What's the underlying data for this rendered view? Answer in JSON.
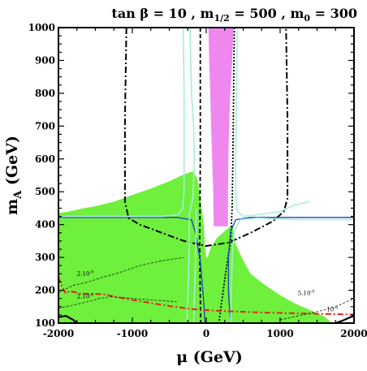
{
  "chart_data": {
    "type": "line",
    "title": "tan β = 10 ,  m1/2 = 500 ,  m0 = 300",
    "title_parts": {
      "t1": "tan β = 10 ,  m",
      "s1": "1/2",
      "t2": " = 500 ,  m",
      "s2": "0",
      "t3": " = 300"
    },
    "xlabel": "μ (GeV)",
    "ylabel_main": "m",
    "ylabel_sub": "A",
    "ylabel_rest": " (GeV)",
    "xlim": [
      -2000,
      2000
    ],
    "ylim": [
      100,
      1000
    ],
    "xticks": [
      -2000,
      -1000,
      0,
      1000,
      2000
    ],
    "xtick_labels": [
      "-2000",
      "-1000",
      "0",
      "1000",
      "2000"
    ],
    "yticks": [
      100,
      200,
      300,
      400,
      500,
      600,
      700,
      800,
      900,
      1000
    ],
    "ytick_labels": [
      "100",
      "200",
      "300",
      "400",
      "500",
      "600",
      "700",
      "800",
      "900",
      "1000"
    ],
    "colors": {
      "green_region": "#6ef03c",
      "pink_band": "#ee88ee",
      "blue_contour": "#1f3fbf",
      "lightblue_contour": "#a8eed8",
      "red_contour": "#e8201a",
      "black": "#000000"
    },
    "regions": {
      "green": [
        [
          -2000,
          100
        ],
        [
          -2000,
          435
        ],
        [
          -1850,
          440
        ],
        [
          -1700,
          448
        ],
        [
          -1500,
          456
        ],
        [
          -1250,
          470
        ],
        [
          -1000,
          490
        ],
        [
          -750,
          510
        ],
        [
          -500,
          532
        ],
        [
          -300,
          553
        ],
        [
          -180,
          562
        ],
        [
          -120,
          540
        ],
        [
          -80,
          480
        ],
        [
          -50,
          430
        ],
        [
          -30,
          390
        ],
        [
          -20,
          340
        ],
        [
          0,
          300
        ],
        [
          20,
          300
        ],
        [
          60,
          330
        ],
        [
          150,
          360
        ],
        [
          300,
          390
        ],
        [
          360,
          400
        ],
        [
          380,
          350
        ],
        [
          480,
          300
        ],
        [
          600,
          250
        ],
        [
          800,
          215
        ],
        [
          1000,
          185
        ],
        [
          1200,
          160
        ],
        [
          1400,
          140
        ],
        [
          1600,
          120
        ],
        [
          1700,
          100
        ]
      ],
      "pink": [
        [
          30,
          1000
        ],
        [
          370,
          1000
        ],
        [
          350,
          900
        ],
        [
          325,
          800
        ],
        [
          310,
          700
        ],
        [
          300,
          600
        ],
        [
          295,
          500
        ],
        [
          295,
          395
        ],
        [
          100,
          395
        ],
        [
          95,
          500
        ],
        [
          80,
          600
        ],
        [
          65,
          700
        ],
        [
          55,
          800
        ],
        [
          40,
          900
        ]
      ]
    },
    "series": [
      {
        "style": "dashdot-black",
        "points": [
          [
            -1080,
            1000
          ],
          [
            -1100,
            720
          ],
          [
            -1100,
            620
          ],
          [
            -1100,
            470
          ],
          [
            -1050,
            420
          ],
          [
            -900,
            400
          ],
          [
            -600,
            375
          ],
          [
            -300,
            350
          ],
          [
            0,
            335
          ],
          [
            300,
            345
          ],
          [
            600,
            375
          ],
          [
            900,
            410
          ],
          [
            1050,
            440
          ],
          [
            1100,
            480
          ],
          [
            1100,
            600
          ],
          [
            1100,
            720
          ],
          [
            1080,
            1000
          ]
        ]
      },
      {
        "style": "dashed-black",
        "points": [
          [
            -80,
            1000
          ],
          [
            -80,
            800
          ],
          [
            -80,
            600
          ],
          [
            -85,
            450
          ],
          [
            -90,
            350
          ],
          [
            -85,
            250
          ],
          [
            -75,
            100
          ]
        ]
      },
      {
        "style": "dotted-black",
        "points": [
          [
            380,
            1000
          ],
          [
            370,
            800
          ],
          [
            360,
            600
          ],
          [
            350,
            450
          ],
          [
            330,
            350
          ],
          [
            260,
            250
          ],
          [
            170,
            100
          ]
        ]
      },
      {
        "style": "solid-blue",
        "points": [
          [
            -2000,
            422
          ],
          [
            -1000,
            422
          ],
          [
            -400,
            422
          ],
          [
            -200,
            415
          ],
          [
            -150,
            380
          ],
          [
            -80,
            290
          ],
          [
            -40,
            180
          ],
          [
            -15,
            100
          ]
        ]
      },
      {
        "style": "solid-blue",
        "points": [
          [
            330,
            100
          ],
          [
            300,
            200
          ],
          [
            300,
            300
          ],
          [
            330,
            380
          ],
          [
            400,
            415
          ],
          [
            600,
            422
          ],
          [
            1000,
            422
          ],
          [
            2000,
            422
          ]
        ]
      },
      {
        "style": "solid-lightblue",
        "points": [
          [
            -310,
            1000
          ],
          [
            -300,
            800
          ],
          [
            -300,
            600
          ],
          [
            -300,
            500
          ],
          [
            -320,
            450
          ],
          [
            -380,
            430
          ],
          [
            -600,
            425
          ],
          [
            -2000,
            425
          ]
        ]
      },
      {
        "style": "solid-lightblue",
        "points": [
          [
            -220,
            1000
          ],
          [
            -200,
            800
          ],
          [
            -170,
            700
          ],
          [
            -160,
            600
          ],
          [
            -180,
            480
          ],
          [
            -230,
            430
          ],
          [
            -230,
            350
          ],
          [
            -240,
            250
          ],
          [
            -260,
            100
          ]
        ]
      },
      {
        "style": "solid-lightblue",
        "points": [
          [
            -170,
            100
          ],
          [
            -150,
            250
          ],
          [
            -140,
            350
          ],
          [
            -135,
            450
          ]
        ]
      },
      {
        "style": "solid-lightblue",
        "points": [
          [
            420,
            1000
          ],
          [
            410,
            800
          ],
          [
            400,
            600
          ],
          [
            400,
            500
          ],
          [
            420,
            440
          ],
          [
            500,
            425
          ],
          [
            700,
            430
          ],
          [
            1000,
            440
          ],
          [
            1200,
            460
          ],
          [
            1400,
            470
          ]
        ]
      },
      {
        "style": "solid-lightblue",
        "points": [
          [
            330,
            100
          ],
          [
            340,
            200
          ],
          [
            350,
            300
          ],
          [
            380,
            380
          ],
          [
            460,
            415
          ],
          [
            700,
            420
          ],
          [
            1200,
            415
          ],
          [
            2000,
            415
          ]
        ]
      },
      {
        "style": "dashdot-red",
        "points": [
          [
            -2000,
            240
          ],
          [
            -1950,
            210
          ],
          [
            -1900,
            190
          ],
          [
            -1850,
            198
          ],
          [
            -1700,
            190
          ],
          [
            -1400,
            188
          ],
          [
            -1100,
            175
          ],
          [
            -800,
            163
          ],
          [
            -500,
            152
          ],
          [
            -200,
            143
          ],
          [
            100,
            138
          ],
          [
            400,
            135
          ],
          [
            800,
            132
          ],
          [
            1200,
            130
          ],
          [
            1600,
            128
          ],
          [
            2000,
            126
          ]
        ]
      },
      {
        "style": "thin-dashed-black",
        "points": [
          [
            -2000,
            193
          ],
          [
            -1800,
            215
          ],
          [
            -1600,
            225
          ],
          [
            -1400,
            240
          ],
          [
            -1200,
            252
          ],
          [
            -900,
            275
          ],
          [
            -600,
            290
          ],
          [
            -300,
            300
          ]
        ]
      },
      {
        "style": "thin-dashed-black",
        "points": [
          [
            -2000,
            145
          ],
          [
            -1800,
            155
          ],
          [
            -1600,
            165
          ],
          [
            -1450,
            175
          ],
          [
            -1300,
            180
          ],
          [
            -1000,
            175
          ],
          [
            -700,
            170
          ],
          [
            -400,
            165
          ]
        ]
      },
      {
        "style": "thin-dashed-black",
        "points": [
          [
            1000,
            110
          ],
          [
            1300,
            125
          ],
          [
            1600,
            140
          ],
          [
            1800,
            155
          ],
          [
            2000,
            175
          ]
        ]
      },
      {
        "style": "solid-black",
        "points": [
          [
            -2000,
            118
          ],
          [
            -1900,
            122
          ],
          [
            -1800,
            110
          ],
          [
            -1750,
            100
          ]
        ]
      },
      {
        "style": "solid-black",
        "points": [
          [
            1750,
            100
          ],
          [
            1850,
            108
          ],
          [
            1950,
            118
          ],
          [
            2000,
            122
          ]
        ]
      }
    ],
    "annotations": [
      {
        "text": "2.10",
        "exp": "-9",
        "x": -1750,
        "y": 245
      },
      {
        "text": "2.10",
        "exp": "-9",
        "x": -1750,
        "y": 175
      },
      {
        "text": "5.10",
        "exp": "-9",
        "x": 1240,
        "y": 185
      },
      {
        "text": "10",
        "exp": "-8",
        "x": 1630,
        "y": 136
      }
    ],
    "grid": false,
    "legend": "none"
  }
}
